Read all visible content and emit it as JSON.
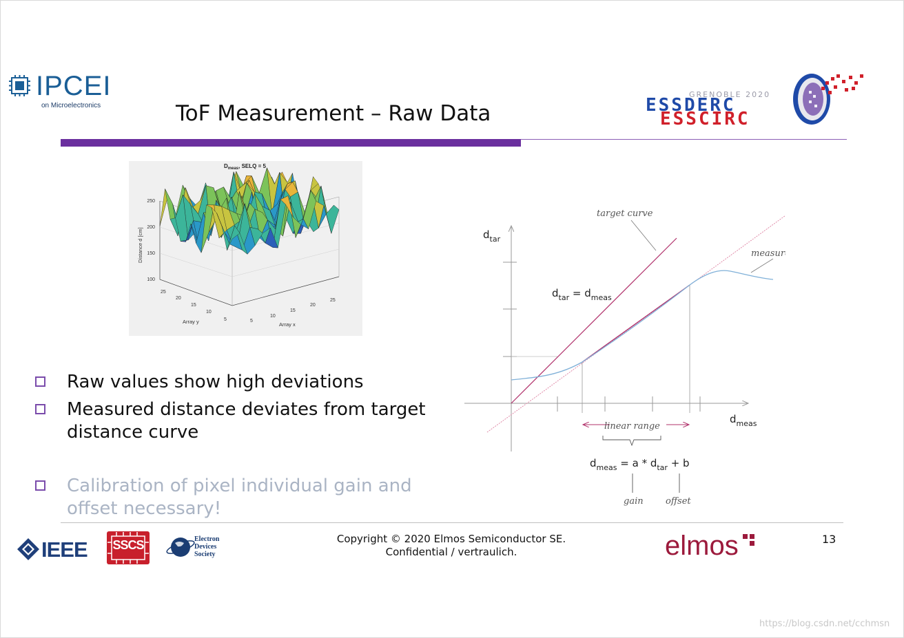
{
  "header": {
    "ipcei_word": "IPCEI",
    "ipcei_sub": "on Microelectronics",
    "title": "ToF Measurement – Raw Data",
    "ess_grenoble": "GRENOBLE 2020",
    "ess_derc": "ESSDERC",
    "ess_circ": "ESSCIRC"
  },
  "figure3d": {
    "title_main": "D",
    "title_sub": "meas",
    "title_rest": ", SELQ = 5",
    "zlabel": "Distance d [cm]",
    "xlabel": "Array x",
    "ylabel": "Array y",
    "z_ticks": [
      "250",
      "200",
      "150",
      "100"
    ],
    "y_ticks": [
      "25",
      "20",
      "15",
      "10",
      "5"
    ],
    "x_ticks": [
      "5",
      "10",
      "15",
      "20",
      "25"
    ]
  },
  "bullets": [
    {
      "line1": "Raw values show high deviations",
      "line2": ""
    },
    {
      "line1": "Measured distance deviates from target",
      "line2": "distance curve"
    },
    {
      "line1": "Calibration of pixel individual gain and",
      "line2": "offset necessary!"
    }
  ],
  "diagram": {
    "y_axis_main": "d",
    "y_axis_sub": "tar",
    "x_axis_main": "d",
    "x_axis_sub": "meas",
    "target_curve": "target curve",
    "measurement": "measurement",
    "eq1_a": "d",
    "eq1_a_sub": "tar",
    "eq1_mid": " = d",
    "eq1_b_sub": "meas",
    "linear_range": "linear range",
    "eq2_a": "d",
    "eq2_a_sub": "meas",
    "eq2_mid": " = a * d",
    "eq2_b_sub": "tar",
    "eq2_end": " + b",
    "gain": "gain",
    "offset": "offset",
    "line_color": "#b0306a",
    "curve_color": "#7fb0d8"
  },
  "footer": {
    "copyright_line1": "Copyright © 2020 Elmos Semiconductor SE.",
    "copyright_line2": "Confidential / vertraulich.",
    "page_number": "13",
    "elmos": "elmos",
    "ieee": "IEEE",
    "sscs": "SSCS",
    "eds_1": "Electron",
    "eds_2": "Devices",
    "eds_3": "Society"
  },
  "watermark": "https://blog.csdn.net/cchmsn"
}
